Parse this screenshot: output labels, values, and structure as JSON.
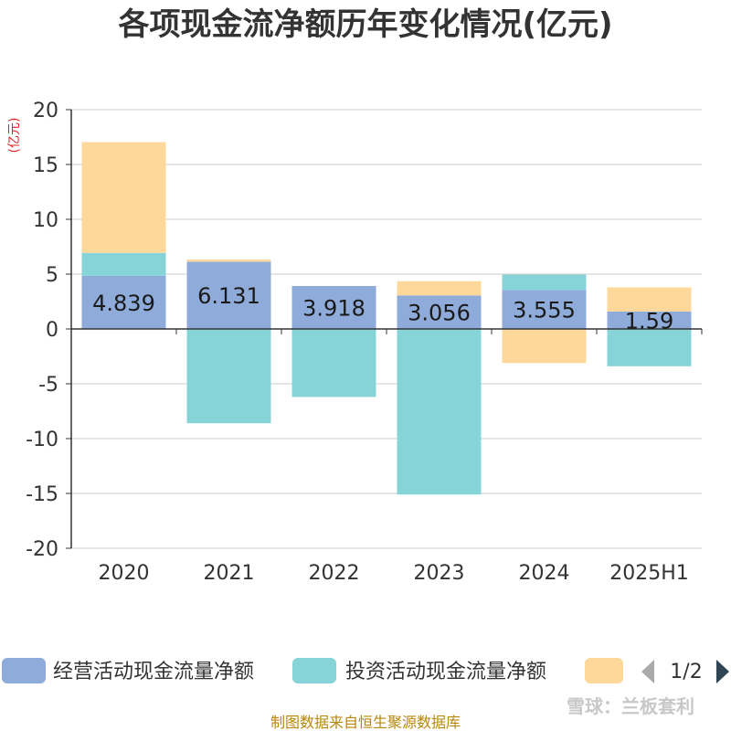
{
  "chart_data": {
    "type": "bar",
    "stacked": true,
    "title": "各项现金流净额历年变化情况(亿元)",
    "ylabel": "(亿元)",
    "ylim": [
      -20,
      20
    ],
    "yticks": [
      20,
      15,
      10,
      5,
      0,
      -5,
      -10,
      -15,
      -20
    ],
    "categories": [
      "2020",
      "2021",
      "2022",
      "2023",
      "2024",
      "2025H1"
    ],
    "series": [
      {
        "name": "经营活动现金流量净额",
        "color": "#8eabd9",
        "values": [
          4.839,
          6.131,
          3.918,
          3.056,
          3.555,
          1.59
        ]
      },
      {
        "name": "投资活动现金流量净额",
        "color": "#87d4d8",
        "values": [
          2.1,
          -8.6,
          -6.2,
          -15.1,
          1.4,
          -3.4
        ]
      },
      {
        "name": "",
        "color": "#fdd89a",
        "values": [
          10.1,
          0.2,
          0.0,
          1.3,
          -3.1,
          2.2
        ]
      }
    ],
    "data_labels": [
      "4.839",
      "6.131",
      "3.918",
      "3.056",
      "3.555",
      "1.59"
    ]
  },
  "legend": {
    "page": "1/2"
  },
  "footer": {
    "source": "制图数据来自恒生聚源数据库",
    "watermark": "雪球：兰板套利"
  }
}
